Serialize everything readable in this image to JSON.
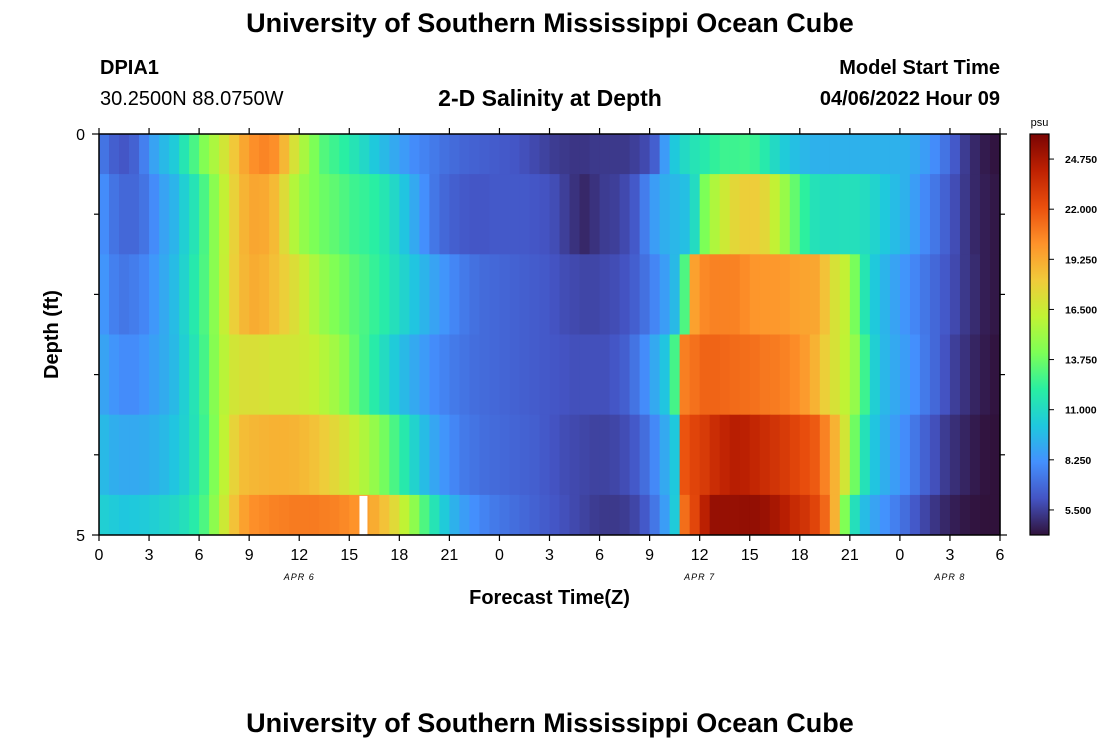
{
  "header": {
    "title": "University of Southern Mississippi Ocean Cube",
    "station": "DPIA1",
    "coords": "30.2500N  88.0750W",
    "subtitle": "2-D Salinity at Depth",
    "model_start_label": "Model Start Time",
    "model_start_value": "04/06/2022 Hour 09"
  },
  "footer": {
    "title": "University of Southern Mississippi Ocean Cube"
  },
  "colors": {
    "colormap": [
      "#30123b",
      "#4454c4",
      "#4490fe",
      "#1fc8de",
      "#29efa2",
      "#7dff56",
      "#c1f334",
      "#f1ca3a",
      "#fe922a",
      "#ea4f0d",
      "#be2102",
      "#7a0403"
    ]
  },
  "chart_data": {
    "type": "heatmap",
    "xlabel": "Forecast Time(Z)",
    "ylabel": "Depth (ft)",
    "x_tick_labels": [
      "0",
      "3",
      "6",
      "9",
      "12",
      "15",
      "18",
      "21",
      "0",
      "3",
      "6",
      "9",
      "12",
      "15",
      "18",
      "21",
      "0",
      "3",
      "6"
    ],
    "x_range_hours": [
      0,
      54
    ],
    "date_labels": [
      {
        "text": "APR 6",
        "hour": 12
      },
      {
        "text": "APR 7",
        "hour": 36
      },
      {
        "text": "APR 8",
        "hour": 51
      }
    ],
    "y_tick_labels": [
      "0",
      "5"
    ],
    "y_range_ft": [
      0,
      5
    ],
    "colorbar": {
      "unit": "psu",
      "min": 4.125,
      "max": 26.125,
      "tick_labels": [
        "5.500",
        "8.250",
        "11.000",
        "13.750",
        "16.500",
        "19.250",
        "22.000",
        "24.750"
      ]
    },
    "depth_bands_ft": [
      [
        0,
        0.5
      ],
      [
        0.5,
        1.5
      ],
      [
        1.5,
        2.5
      ],
      [
        2.5,
        3.5
      ],
      [
        3.5,
        4.5
      ],
      [
        4.5,
        5
      ]
    ],
    "rows": [
      [
        7.2,
        6.5,
        6.2,
        6.6,
        7.6,
        8.8,
        9.6,
        10.3,
        11.6,
        12.9,
        14.3,
        15.5,
        16.8,
        18.2,
        19.4,
        20.2,
        20.5,
        20.2,
        18.8,
        17.0,
        15.4,
        14.1,
        13.1,
        12.6,
        12.1,
        11.5,
        10.9,
        10.2,
        9.6,
        9.0,
        8.5,
        8.0,
        7.7,
        7.4,
        7.1,
        6.9,
        6.7,
        6.6,
        6.5,
        6.4,
        6.3,
        6.2,
        6.0,
        5.8,
        5.6,
        5.4,
        5.3,
        5.2,
        5.2,
        5.3,
        5.3,
        5.3,
        5.3,
        5.5,
        5.8,
        6.5,
        8.5,
        10.2,
        11.0,
        11.5,
        11.8,
        12.3,
        12.6,
        12.6,
        12.7,
        12.5,
        11.8,
        11.0,
        10.3,
        9.8,
        9.5,
        9.3,
        9.3,
        9.3,
        9.3,
        9.3,
        9.3,
        9.3,
        9.3,
        9.3,
        9.3,
        9.0,
        8.6,
        8.0,
        7.2,
        6.3,
        5.4,
        4.8,
        4.4,
        4.2
      ],
      [
        8.0,
        7.2,
        6.8,
        6.8,
        7.2,
        8.0,
        8.8,
        9.4,
        10.5,
        11.5,
        12.9,
        14.5,
        16.2,
        17.8,
        18.9,
        19.4,
        19.3,
        18.7,
        17.3,
        15.7,
        14.7,
        14.1,
        13.7,
        13.4,
        13.0,
        12.6,
        12.4,
        12.1,
        11.6,
        10.9,
        10.0,
        9.0,
        8.1,
        7.3,
        6.8,
        6.5,
        6.3,
        6.2,
        6.2,
        6.3,
        6.3,
        6.3,
        6.3,
        6.2,
        6.1,
        5.9,
        5.5,
        5.1,
        4.8,
        5.1,
        5.4,
        5.5,
        5.8,
        6.3,
        7.5,
        8.6,
        9.2,
        9.5,
        9.8,
        11.1,
        14.1,
        15.6,
        16.6,
        17.5,
        17.9,
        18.0,
        17.5,
        16.2,
        14.9,
        13.5,
        12.2,
        11.4,
        11.2,
        11.2,
        11.3,
        11.3,
        11.1,
        10.7,
        10.2,
        9.7,
        9.3,
        8.6,
        7.9,
        7.3,
        6.6,
        5.9,
        5.3,
        4.8,
        4.5,
        4.3
      ],
      [
        8.3,
        7.6,
        7.3,
        7.5,
        7.8,
        8.4,
        9.0,
        9.7,
        10.7,
        11.8,
        13.0,
        14.5,
        16.3,
        17.9,
        18.8,
        19.2,
        19.0,
        18.5,
        17.9,
        17.2,
        16.4,
        15.5,
        14.8,
        14.2,
        13.8,
        13.3,
        12.9,
        12.4,
        11.9,
        11.3,
        10.7,
        10.0,
        9.4,
        8.8,
        8.3,
        7.8,
        7.4,
        7.1,
        6.9,
        6.8,
        6.7,
        6.6,
        6.5,
        6.4,
        6.3,
        6.1,
        5.9,
        5.8,
        5.7,
        5.7,
        5.8,
        5.9,
        6.1,
        6.5,
        7.1,
        7.8,
        8.6,
        9.6,
        13.0,
        19.6,
        20.4,
        20.6,
        20.6,
        20.6,
        20.3,
        20.0,
        19.9,
        19.9,
        19.8,
        19.6,
        19.5,
        19.4,
        18.4,
        17.0,
        16.2,
        14.0,
        11.6,
        10.2,
        9.4,
        8.8,
        8.3,
        7.8,
        7.3,
        6.8,
        6.3,
        5.8,
        5.3,
        4.9,
        4.5,
        4.3
      ],
      [
        8.8,
        8.3,
        8.0,
        8.0,
        8.3,
        8.7,
        9.1,
        9.6,
        10.5,
        11.5,
        12.8,
        14.4,
        15.9,
        16.8,
        17.1,
        17.1,
        17.0,
        16.8,
        16.8,
        16.7,
        16.5,
        16.2,
        15.7,
        15.2,
        14.5,
        13.6,
        12.8,
        11.9,
        11.1,
        10.3,
        9.6,
        9.0,
        8.5,
        8.0,
        7.7,
        7.4,
        7.2,
        7.0,
        6.9,
        6.8,
        6.7,
        6.6,
        6.5,
        6.4,
        6.3,
        6.2,
        6.1,
        6.0,
        6.0,
        6.0,
        6.0,
        6.2,
        6.5,
        7.2,
        8.0,
        9.0,
        10.0,
        12.8,
        20.7,
        21.1,
        21.5,
        21.5,
        21.4,
        21.3,
        21.2,
        21.1,
        20.9,
        20.8,
        20.6,
        20.3,
        19.8,
        19.0,
        17.9,
        17.0,
        16.1,
        14.8,
        12.6,
        10.5,
        9.5,
        9.0,
        8.6,
        8.1,
        7.4,
        6.8,
        6.1,
        5.5,
        5.1,
        4.7,
        4.4,
        4.2
      ],
      [
        9.6,
        9.2,
        9.0,
        9.0,
        9.1,
        9.3,
        9.6,
        10.0,
        10.6,
        11.4,
        12.6,
        14.2,
        16.1,
        17.7,
        18.6,
        18.8,
        18.9,
        19.0,
        19.0,
        18.9,
        18.7,
        18.4,
        18.0,
        17.5,
        16.9,
        16.3,
        15.6,
        14.8,
        13.9,
        12.9,
        11.8,
        10.7,
        9.7,
        8.9,
        8.3,
        7.8,
        7.4,
        7.2,
        7.0,
        6.9,
        6.8,
        6.7,
        6.6,
        6.5,
        6.3,
        6.1,
        5.9,
        5.8,
        5.7,
        5.6,
        5.6,
        5.7,
        5.9,
        6.3,
        7.0,
        7.9,
        9.0,
        10.2,
        22.0,
        22.6,
        23.0,
        23.6,
        24.0,
        24.3,
        24.2,
        23.9,
        23.6,
        23.3,
        23.0,
        22.6,
        22.2,
        21.8,
        20.6,
        19.0,
        16.8,
        13.8,
        11.4,
        10.0,
        9.2,
        8.6,
        8.0,
        7.3,
        6.6,
        6.0,
        5.4,
        5.0,
        4.7,
        4.4,
        4.2,
        4.1
      ],
      [
        10.5,
        10.3,
        10.1,
        10.2,
        10.3,
        10.5,
        10.7,
        10.9,
        11.3,
        11.9,
        13.0,
        14.6,
        16.6,
        18.4,
        19.6,
        20.2,
        20.4,
        20.6,
        20.7,
        20.8,
        20.8,
        20.8,
        20.7,
        20.6,
        20.4,
        20.1,
        19.7,
        19.2,
        18.4,
        17.4,
        16.1,
        14.6,
        13.0,
        11.5,
        10.3,
        9.3,
        8.6,
        8.1,
        7.7,
        7.4,
        7.2,
        7.0,
        6.8,
        6.6,
        6.4,
        6.2,
        6.0,
        5.8,
        5.6,
        5.4,
        5.3,
        5.3,
        5.4,
        5.7,
        6.3,
        7.3,
        8.6,
        10.3,
        21.2,
        22.5,
        24.2,
        25.3,
        25.3,
        25.3,
        25.4,
        25.4,
        25.2,
        24.8,
        24.3,
        23.7,
        23.3,
        22.6,
        21.4,
        19.0,
        14.2,
        11.3,
        9.7,
        8.8,
        8.2,
        7.6,
        7.0,
        6.3,
        5.7,
        5.2,
        4.8,
        4.5,
        4.3,
        4.2,
        4.1,
        4.0
      ]
    ],
    "gaps": [
      {
        "row": 5,
        "hour": 15.85
      }
    ]
  }
}
